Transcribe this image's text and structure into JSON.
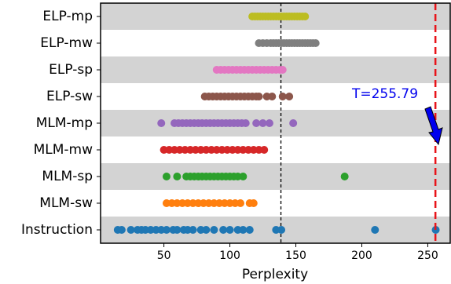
{
  "chart_data": {
    "type": "strip",
    "xlabel": "Perplexity",
    "categories": [
      "ELP-mp",
      "ELP-mw",
      "ELP-sp",
      "ELP-sw",
      "MLM-mp",
      "MLM-mw",
      "MLM-sp",
      "MLM-sw",
      "Instruction"
    ],
    "colors": [
      "#bcbd22",
      "#7f7f7f",
      "#e377c2",
      "#8c564b",
      "#9467bd",
      "#d62728",
      "#2ca02c",
      "#ff7f0e",
      "#1f77b4"
    ],
    "points": [
      [
        117,
        119,
        121,
        123,
        125,
        127,
        129,
        131,
        133,
        135,
        137,
        139,
        141,
        143,
        145,
        147,
        149,
        151,
        153,
        155,
        157
      ],
      [
        122,
        125,
        128,
        131,
        133,
        135,
        137,
        139,
        141,
        143,
        145,
        147,
        149,
        151,
        153,
        155,
        157,
        159,
        161,
        163,
        165
      ],
      [
        90,
        93,
        96,
        99,
        102,
        105,
        108,
        111,
        114,
        117,
        120,
        123,
        126,
        129,
        132,
        135,
        138,
        140
      ],
      [
        81,
        84,
        87,
        90,
        93,
        96,
        99,
        102,
        105,
        108,
        111,
        114,
        117,
        120,
        122,
        128,
        132,
        140,
        145
      ],
      [
        48,
        58,
        61,
        64,
        67,
        70,
        73,
        76,
        79,
        82,
        85,
        88,
        91,
        94,
        97,
        100,
        103,
        106,
        109,
        112,
        120,
        125,
        130,
        148
      ],
      [
        50,
        54,
        58,
        62,
        66,
        70,
        74,
        78,
        82,
        86,
        90,
        94,
        98,
        102,
        106,
        110,
        114,
        118,
        122,
        126
      ],
      [
        52,
        60,
        67,
        70,
        73,
        76,
        79,
        82,
        85,
        88,
        91,
        94,
        97,
        100,
        103,
        106,
        110,
        187
      ],
      [
        52,
        56,
        60,
        64,
        68,
        72,
        76,
        80,
        84,
        88,
        92,
        96,
        100,
        104,
        108,
        115,
        118
      ],
      [
        15,
        18,
        25,
        30,
        33,
        36,
        40,
        44,
        48,
        52,
        57,
        60,
        65,
        68,
        72,
        78,
        82,
        88,
        95,
        100,
        106,
        110,
        115,
        135,
        139,
        210,
        256
      ]
    ],
    "reference_line": 138.7,
    "threshold": {
      "value": 255.79,
      "label": "T=255.79"
    },
    "xlim": [
      2,
      267
    ],
    "xticks": [
      50,
      100,
      150,
      200,
      250
    ]
  }
}
